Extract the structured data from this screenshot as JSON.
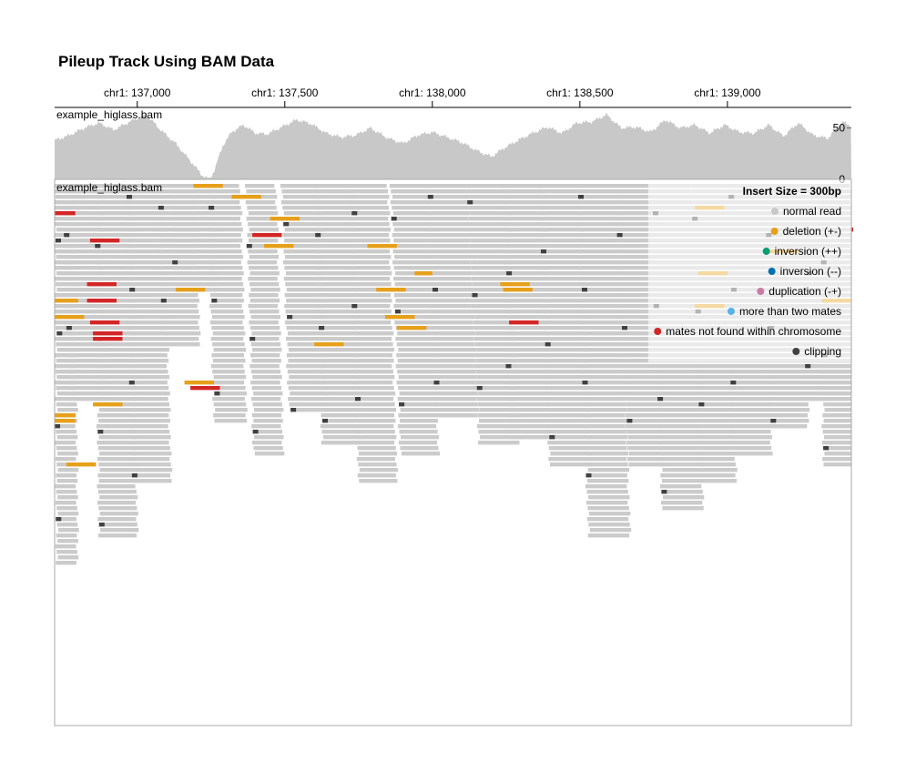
{
  "title": "Pileup Track Using BAM Data",
  "chart_data": {
    "type": "pileup",
    "x_axis": {
      "domain": [
        136720,
        139420
      ],
      "ticks": [
        {
          "value": 137000,
          "label": "chr1: 137,000"
        },
        {
          "value": 137500,
          "label": "chr1: 137,500"
        },
        {
          "value": 138000,
          "label": "chr1: 138,000"
        },
        {
          "value": 138500,
          "label": "chr1: 138,500"
        },
        {
          "value": 139000,
          "label": "chr1: 139,000"
        }
      ]
    },
    "coverage_track": {
      "label": "example_higlass.bam",
      "y_domain": [
        0,
        70
      ],
      "y_ticks": [
        {
          "value": 0,
          "label": "0"
        },
        {
          "value": 50,
          "label": "50"
        }
      ],
      "color": "#c8c8c8",
      "profile": [
        [
          136720,
          38
        ],
        [
          136770,
          43
        ],
        [
          136820,
          50
        ],
        [
          136870,
          55
        ],
        [
          136920,
          48
        ],
        [
          136980,
          57
        ],
        [
          137030,
          63
        ],
        [
          137080,
          48
        ],
        [
          137130,
          35
        ],
        [
          137180,
          18
        ],
        [
          137220,
          4
        ],
        [
          137245,
          0
        ],
        [
          137260,
          8
        ],
        [
          137290,
          33
        ],
        [
          137320,
          46
        ],
        [
          137360,
          53
        ],
        [
          137400,
          45
        ],
        [
          137440,
          44
        ],
        [
          137490,
          51
        ],
        [
          137540,
          58
        ],
        [
          137590,
          54
        ],
        [
          137640,
          45
        ],
        [
          137690,
          41
        ],
        [
          137740,
          43
        ],
        [
          137790,
          50
        ],
        [
          137850,
          40
        ],
        [
          137900,
          35
        ],
        [
          137950,
          43
        ],
        [
          138000,
          46
        ],
        [
          138050,
          41
        ],
        [
          138100,
          36
        ],
        [
          138150,
          28
        ],
        [
          138200,
          22
        ],
        [
          138240,
          30
        ],
        [
          138290,
          38
        ],
        [
          138340,
          45
        ],
        [
          138390,
          51
        ],
        [
          138440,
          45
        ],
        [
          138490,
          55
        ],
        [
          138540,
          56
        ],
        [
          138590,
          63
        ],
        [
          138640,
          50
        ],
        [
          138690,
          51
        ],
        [
          138740,
          46
        ],
        [
          138790,
          58
        ],
        [
          138840,
          50
        ],
        [
          138890,
          53
        ],
        [
          138940,
          45
        ],
        [
          138990,
          53
        ],
        [
          139040,
          46
        ],
        [
          139090,
          45
        ],
        [
          139140,
          53
        ],
        [
          139190,
          42
        ],
        [
          139240,
          55
        ],
        [
          139290,
          43
        ],
        [
          139340,
          40
        ],
        [
          139390,
          56
        ],
        [
          139420,
          52
        ]
      ]
    },
    "pileup_track": {
      "label": "example_higlass.bam",
      "insert_size_label": "Insert Size = 300bp",
      "read_color": "#cbcbcb",
      "legend": [
        {
          "label": "normal read",
          "color": "#c8c8c8"
        },
        {
          "label": "deletion (+-)",
          "color": "#e6a01b"
        },
        {
          "label": "inversion (++)",
          "color": "#029f73"
        },
        {
          "label": "inversion (--)",
          "color": "#0072b2"
        },
        {
          "label": "duplication (-+)",
          "color": "#cb7aa7"
        },
        {
          "label": "more than two mates",
          "color": "#57b4e9"
        },
        {
          "label": "mates not found within chromosome",
          "color": "#d32626"
        },
        {
          "label": "clipping",
          "color": "#414141"
        }
      ],
      "columns": [
        {
          "x0": 136720,
          "x1": 136790,
          "drift": 8,
          "rows": 70
        },
        {
          "x0": 136750,
          "x1": 136880,
          "drift": 15,
          "rows": 40
        },
        {
          "x0": 136860,
          "x1": 136990,
          "drift": 10,
          "rows": 65
        },
        {
          "x0": 136960,
          "x1": 137090,
          "drift": 25,
          "rows": 55
        },
        {
          "x0": 137070,
          "x1": 137200,
          "drift": 12,
          "rows": 30
        },
        {
          "x0": 137110,
          "x1": 137260,
          "drift": 18,
          "rows": 20
        },
        {
          "x0": 137240,
          "x1": 137350,
          "drift": 20,
          "rows": 44
        },
        {
          "x0": 137370,
          "x1": 137470,
          "drift": 25,
          "rows": 50
        },
        {
          "x0": 137490,
          "x1": 137620,
          "drift": 25,
          "rows": 42
        },
        {
          "x0": 137600,
          "x1": 137730,
          "drift": 28,
          "rows": 48
        },
        {
          "x0": 137720,
          "x1": 137850,
          "drift": 30,
          "rows": 55
        },
        {
          "x0": 137860,
          "x1": 137990,
          "drift": 32,
          "rows": 50
        },
        {
          "x0": 137980,
          "x1": 138120,
          "drift": 35,
          "rows": 43
        },
        {
          "x0": 138120,
          "x1": 138260,
          "drift": 40,
          "rows": 48
        },
        {
          "x0": 138240,
          "x1": 138380,
          "drift": 20,
          "rows": 47
        },
        {
          "x0": 138360,
          "x1": 138500,
          "drift": 38,
          "rows": 52
        },
        {
          "x0": 138490,
          "x1": 138630,
          "drift": 40,
          "rows": 65
        },
        {
          "x0": 138620,
          "x1": 138740,
          "drift": 45,
          "rows": 52
        },
        {
          "x0": 138740,
          "x1": 138880,
          "drift": 40,
          "rows": 60
        },
        {
          "x0": 138880,
          "x1": 139000,
          "drift": 30,
          "rows": 55
        },
        {
          "x0": 139000,
          "x1": 139130,
          "drift": 20,
          "rows": 50
        },
        {
          "x0": 139130,
          "x1": 139260,
          "drift": 15,
          "rows": 45
        },
        {
          "x0": 139260,
          "x1": 139400,
          "drift": 10,
          "rows": 40
        },
        {
          "x0": 139320,
          "x1": 139420,
          "drift": 5,
          "rows": 52
        }
      ],
      "colored_reads": [
        {
          "start": 136720,
          "end": 136790,
          "row": 5,
          "type": "mates not found within chromosome"
        },
        {
          "start": 136840,
          "end": 136940,
          "row": 10,
          "type": "mates not found within chromosome"
        },
        {
          "start": 136830,
          "end": 136930,
          "row": 18,
          "type": "mates not found within chromosome"
        },
        {
          "start": 136830,
          "end": 136930,
          "row": 21,
          "type": "mates not found within chromosome"
        },
        {
          "start": 136840,
          "end": 136940,
          "row": 25,
          "type": "mates not found within chromosome"
        },
        {
          "start": 136850,
          "end": 136950,
          "row": 27,
          "type": "mates not found within chromosome"
        },
        {
          "start": 136850,
          "end": 136950,
          "row": 28,
          "type": "mates not found within chromosome"
        },
        {
          "start": 137180,
          "end": 137280,
          "row": 37,
          "type": "mates not found within chromosome"
        },
        {
          "start": 137390,
          "end": 137490,
          "row": 9,
          "type": "mates not found within chromosome"
        },
        {
          "start": 138260,
          "end": 138360,
          "row": 25,
          "type": "mates not found within chromosome"
        },
        {
          "start": 139420,
          "end": 139430,
          "row": 8,
          "type": "mates not found within chromosome"
        },
        {
          "start": 137190,
          "end": 137290,
          "row": 0,
          "type": "deletion (+-)"
        },
        {
          "start": 137320,
          "end": 137420,
          "row": 2,
          "type": "deletion (+-)"
        },
        {
          "start": 137450,
          "end": 137550,
          "row": 6,
          "type": "deletion (+-)"
        },
        {
          "start": 137430,
          "end": 137530,
          "row": 11,
          "type": "deletion (+-)"
        },
        {
          "start": 137780,
          "end": 137880,
          "row": 11,
          "type": "deletion (+-)"
        },
        {
          "start": 137940,
          "end": 138000,
          "row": 16,
          "type": "deletion (+-)"
        },
        {
          "start": 137130,
          "end": 137230,
          "row": 19,
          "type": "deletion (+-)"
        },
        {
          "start": 137810,
          "end": 137910,
          "row": 19,
          "type": "deletion (+-)"
        },
        {
          "start": 138230,
          "end": 138330,
          "row": 18,
          "type": "deletion (+-)"
        },
        {
          "start": 136720,
          "end": 136800,
          "row": 21,
          "type": "deletion (+-)"
        },
        {
          "start": 136720,
          "end": 136820,
          "row": 24,
          "type": "deletion (+-)"
        },
        {
          "start": 137840,
          "end": 137940,
          "row": 24,
          "type": "deletion (+-)"
        },
        {
          "start": 138890,
          "end": 138990,
          "row": 22,
          "type": "deletion (+-)"
        },
        {
          "start": 139140,
          "end": 139240,
          "row": 12,
          "type": "deletion (+-)"
        },
        {
          "start": 139320,
          "end": 139420,
          "row": 21,
          "type": "deletion (+-)"
        },
        {
          "start": 137880,
          "end": 137980,
          "row": 26,
          "type": "deletion (+-)"
        },
        {
          "start": 137600,
          "end": 137700,
          "row": 29,
          "type": "deletion (+-)"
        },
        {
          "start": 137160,
          "end": 137260,
          "row": 36,
          "type": "deletion (+-)"
        },
        {
          "start": 136850,
          "end": 136950,
          "row": 40,
          "type": "deletion (+-)"
        },
        {
          "start": 136720,
          "end": 136790,
          "row": 42,
          "type": "deletion (+-)"
        },
        {
          "start": 136720,
          "end": 136790,
          "row": 43,
          "type": "deletion (+-)"
        },
        {
          "start": 136760,
          "end": 136860,
          "row": 51,
          "type": "deletion (+-)"
        },
        {
          "start": 138240,
          "end": 138340,
          "row": 19,
          "type": "deletion (+-)"
        },
        {
          "start": 138890,
          "end": 138990,
          "row": 4,
          "type": "deletion (+-)"
        },
        {
          "start": 138900,
          "end": 139000,
          "row": 16,
          "type": "deletion (+-)"
        }
      ]
    }
  }
}
